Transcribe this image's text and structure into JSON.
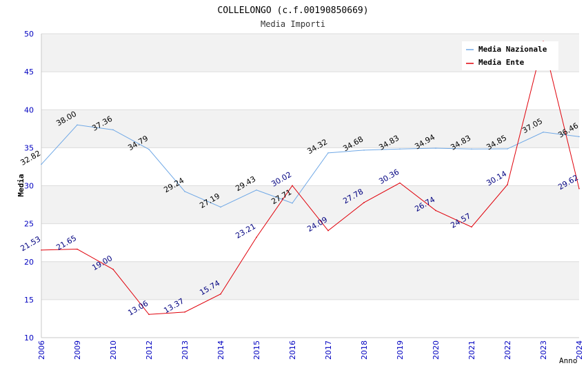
{
  "chart_data": {
    "type": "line",
    "title": "COLLELONGO (c.f.00190850669)",
    "subtitle": "Media Importi",
    "xlabel": "Anno",
    "ylabel": "Media",
    "ylim": [
      10,
      50
    ],
    "yticks": [
      "10",
      "15",
      "20",
      "25",
      "30",
      "35",
      "40",
      "45",
      "50"
    ],
    "categories": [
      "2006",
      "2009",
      "2010",
      "2012",
      "2013",
      "2014",
      "2015",
      "2016",
      "2017",
      "2018",
      "2019",
      "2020",
      "2021",
      "2022",
      "2023",
      "2024"
    ],
    "legend_position": "top-right",
    "grid": true,
    "series": [
      {
        "name": "Media Nazionale",
        "color": "#6fa8e6",
        "label_color": "#000000",
        "values": [
          32.82,
          38.0,
          37.36,
          34.79,
          29.24,
          27.19,
          29.43,
          27.71,
          34.32,
          34.68,
          34.83,
          34.94,
          34.83,
          34.85,
          37.05,
          36.46
        ],
        "labels": [
          "32.82",
          "38.00",
          "37.36",
          "34.79",
          "29.24",
          "27.19",
          "29.43",
          "27.71",
          "34.32",
          "34.68",
          "34.83",
          "34.94",
          "34.83",
          "34.85",
          "37.05",
          "36.46"
        ]
      },
      {
        "name": "Media Ente",
        "color": "#e0000a",
        "label_color": "#000080",
        "values": [
          21.53,
          21.65,
          19.0,
          13.06,
          13.37,
          15.74,
          23.21,
          30.02,
          24.09,
          27.78,
          30.36,
          26.74,
          24.57,
          30.14,
          49.0,
          29.62
        ],
        "labels": [
          "21.53",
          "21.65",
          "19.00",
          "13.06",
          "13.37",
          "15.74",
          "23.21",
          "30.02",
          "24.09",
          "27.78",
          "30.36",
          "26.74",
          "24.57",
          "30.14",
          "",
          "29.62"
        ]
      }
    ]
  }
}
